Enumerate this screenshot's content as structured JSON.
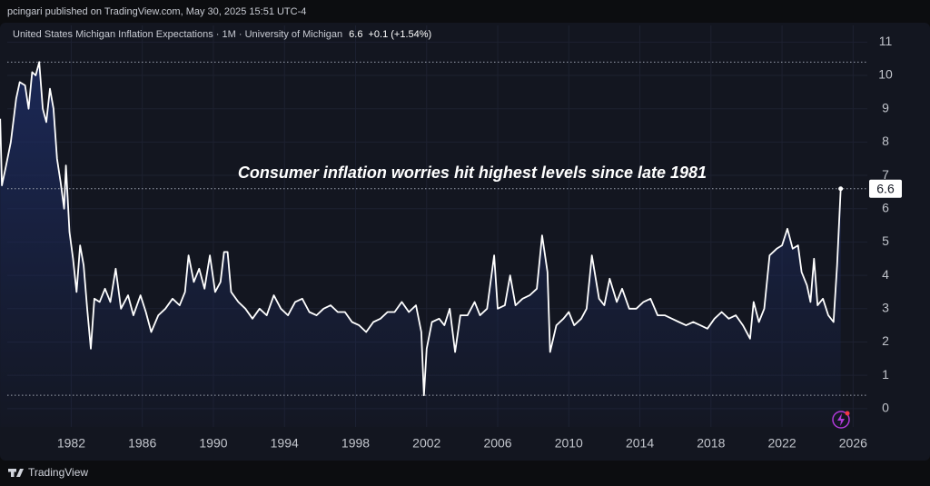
{
  "header": {
    "publisher": "pcingari published on TradingView.com, May 30, 2025 15:51 UTC-4",
    "legend": "United States Michigan Inflation Expectations · 1M · University of Michigan",
    "change": "+0.1 (+1.54%)",
    "footer": "TradingView"
  },
  "chart_data": {
    "type": "area",
    "annotation": "Consumer inflation worries hit highest levels since late 1981",
    "color": "#ffffff",
    "fill": "#1c2a5c",
    "xlim": [
      1978.4,
      2026.8
    ],
    "ylim": [
      -0.55,
      11.5
    ],
    "xticks": [
      1982,
      1986,
      1990,
      1994,
      1998,
      2002,
      2006,
      2010,
      2014,
      2018,
      2022,
      2026
    ],
    "yticks": [
      0,
      1,
      2,
      3,
      4,
      5,
      6,
      7,
      8,
      9,
      10,
      11
    ],
    "grid": true,
    "x": [
      1978.0,
      1978.1,
      1978.3,
      1978.6,
      1978.9,
      1979.1,
      1979.4,
      1979.6,
      1979.8,
      1980.0,
      1980.2,
      1980.4,
      1980.6,
      1980.8,
      1981.0,
      1981.2,
      1981.4,
      1981.6,
      1981.7,
      1981.9,
      1982.1,
      1982.3,
      1982.5,
      1982.7,
      1982.9,
      1983.1,
      1983.3,
      1983.6,
      1983.9,
      1984.2,
      1984.5,
      1984.8,
      1985.2,
      1985.5,
      1985.9,
      1986.2,
      1986.5,
      1986.9,
      1987.3,
      1987.7,
      1988.1,
      1988.4,
      1988.6,
      1988.9,
      1989.2,
      1989.5,
      1989.8,
      1990.1,
      1990.4,
      1990.6,
      1990.8,
      1991.0,
      1991.4,
      1991.8,
      1992.2,
      1992.6,
      1993.0,
      1993.4,
      1993.8,
      1994.2,
      1994.6,
      1995.0,
      1995.4,
      1995.8,
      1996.2,
      1996.6,
      1997.0,
      1997.4,
      1997.8,
      1998.2,
      1998.6,
      1999.0,
      1999.4,
      1999.8,
      2000.2,
      2000.6,
      2001.0,
      2001.4,
      2001.7,
      2001.85,
      2002.0,
      2002.3,
      2002.7,
      2003.0,
      2003.3,
      2003.6,
      2003.9,
      2004.3,
      2004.7,
      2005.0,
      2005.4,
      2005.8,
      2006.0,
      2006.4,
      2006.7,
      2007.0,
      2007.4,
      2007.8,
      2008.2,
      2008.5,
      2008.8,
      2008.95,
      2009.3,
      2009.7,
      2010.0,
      2010.3,
      2010.7,
      2011.0,
      2011.3,
      2011.7,
      2012.0,
      2012.3,
      2012.7,
      2013.0,
      2013.4,
      2013.8,
      2014.2,
      2014.6,
      2015.0,
      2015.4,
      2015.8,
      2016.2,
      2016.6,
      2017.0,
      2017.4,
      2017.8,
      2018.2,
      2018.6,
      2019.0,
      2019.4,
      2019.8,
      2020.2,
      2020.4,
      2020.7,
      2021.0,
      2021.3,
      2021.7,
      2022.0,
      2022.3,
      2022.6,
      2022.9,
      2023.1,
      2023.4,
      2023.6,
      2023.8,
      2024.0,
      2024.3,
      2024.6,
      2024.9,
      2025.1,
      2025.3
    ],
    "values": [
      8.7,
      6.7,
      7.2,
      8.0,
      9.3,
      9.8,
      9.7,
      9.0,
      10.1,
      10.0,
      10.4,
      9.0,
      8.6,
      9.6,
      9.0,
      7.5,
      6.8,
      6.0,
      7.3,
      5.3,
      4.5,
      3.5,
      4.9,
      4.3,
      3.0,
      1.8,
      3.3,
      3.2,
      3.6,
      3.2,
      4.2,
      3.0,
      3.4,
      2.8,
      3.4,
      2.9,
      2.3,
      2.8,
      3.0,
      3.3,
      3.1,
      3.5,
      4.6,
      3.8,
      4.2,
      3.6,
      4.6,
      3.5,
      3.8,
      4.7,
      4.7,
      3.5,
      3.2,
      3.0,
      2.7,
      3.0,
      2.8,
      3.4,
      3.0,
      2.8,
      3.2,
      3.3,
      2.9,
      2.8,
      3.0,
      3.1,
      2.9,
      2.9,
      2.6,
      2.5,
      2.3,
      2.6,
      2.7,
      2.9,
      2.9,
      3.2,
      2.9,
      3.1,
      2.3,
      0.4,
      1.8,
      2.6,
      2.7,
      2.5,
      3.0,
      1.7,
      2.8,
      2.8,
      3.2,
      2.8,
      3.0,
      4.6,
      3.0,
      3.1,
      4.0,
      3.1,
      3.3,
      3.4,
      3.6,
      5.2,
      4.1,
      1.7,
      2.5,
      2.7,
      2.9,
      2.5,
      2.7,
      3.0,
      4.6,
      3.3,
      3.1,
      3.9,
      3.2,
      3.6,
      3.0,
      3.0,
      3.2,
      3.3,
      2.8,
      2.8,
      2.7,
      2.6,
      2.5,
      2.6,
      2.5,
      2.4,
      2.7,
      2.9,
      2.7,
      2.8,
      2.5,
      2.1,
      3.2,
      2.6,
      3.0,
      4.6,
      4.8,
      4.9,
      5.4,
      4.8,
      4.9,
      4.1,
      3.7,
      3.2,
      4.5,
      3.1,
      3.3,
      2.8,
      2.6,
      4.3,
      6.6
    ]
  }
}
